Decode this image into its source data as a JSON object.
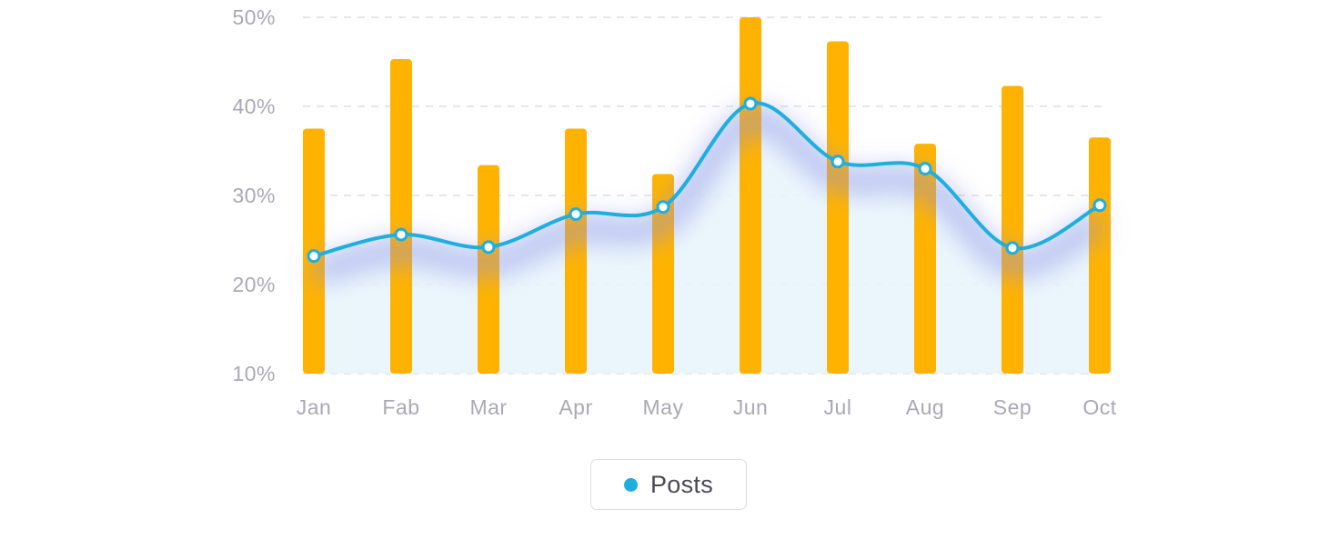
{
  "chart_data": {
    "type": "bar+line",
    "categories": [
      "Jan",
      "Fab",
      "Mar",
      "Apr",
      "May",
      "Jun",
      "Jul",
      "Aug",
      "Sep",
      "Oct"
    ],
    "y_tick_labels": [
      "10%",
      "20%",
      "30%",
      "40%",
      "50%"
    ],
    "ylim": [
      10,
      50
    ],
    "y_unit": "%",
    "grid": "horizontal dashed",
    "bars": {
      "values": [
        37.5,
        45.3,
        33.4,
        37.5,
        32.4,
        50.0,
        47.3,
        35.8,
        42.3,
        36.5
      ],
      "color": "#ffb300"
    },
    "series": [
      {
        "name": "Posts",
        "values": [
          23.2,
          25.6,
          24.2,
          27.9,
          28.7,
          40.3,
          33.8,
          33.0,
          24.1,
          28.9
        ],
        "color": "#1eaee0"
      }
    ],
    "legend_position": "bottom-center"
  },
  "legend": {
    "label": "Posts"
  }
}
